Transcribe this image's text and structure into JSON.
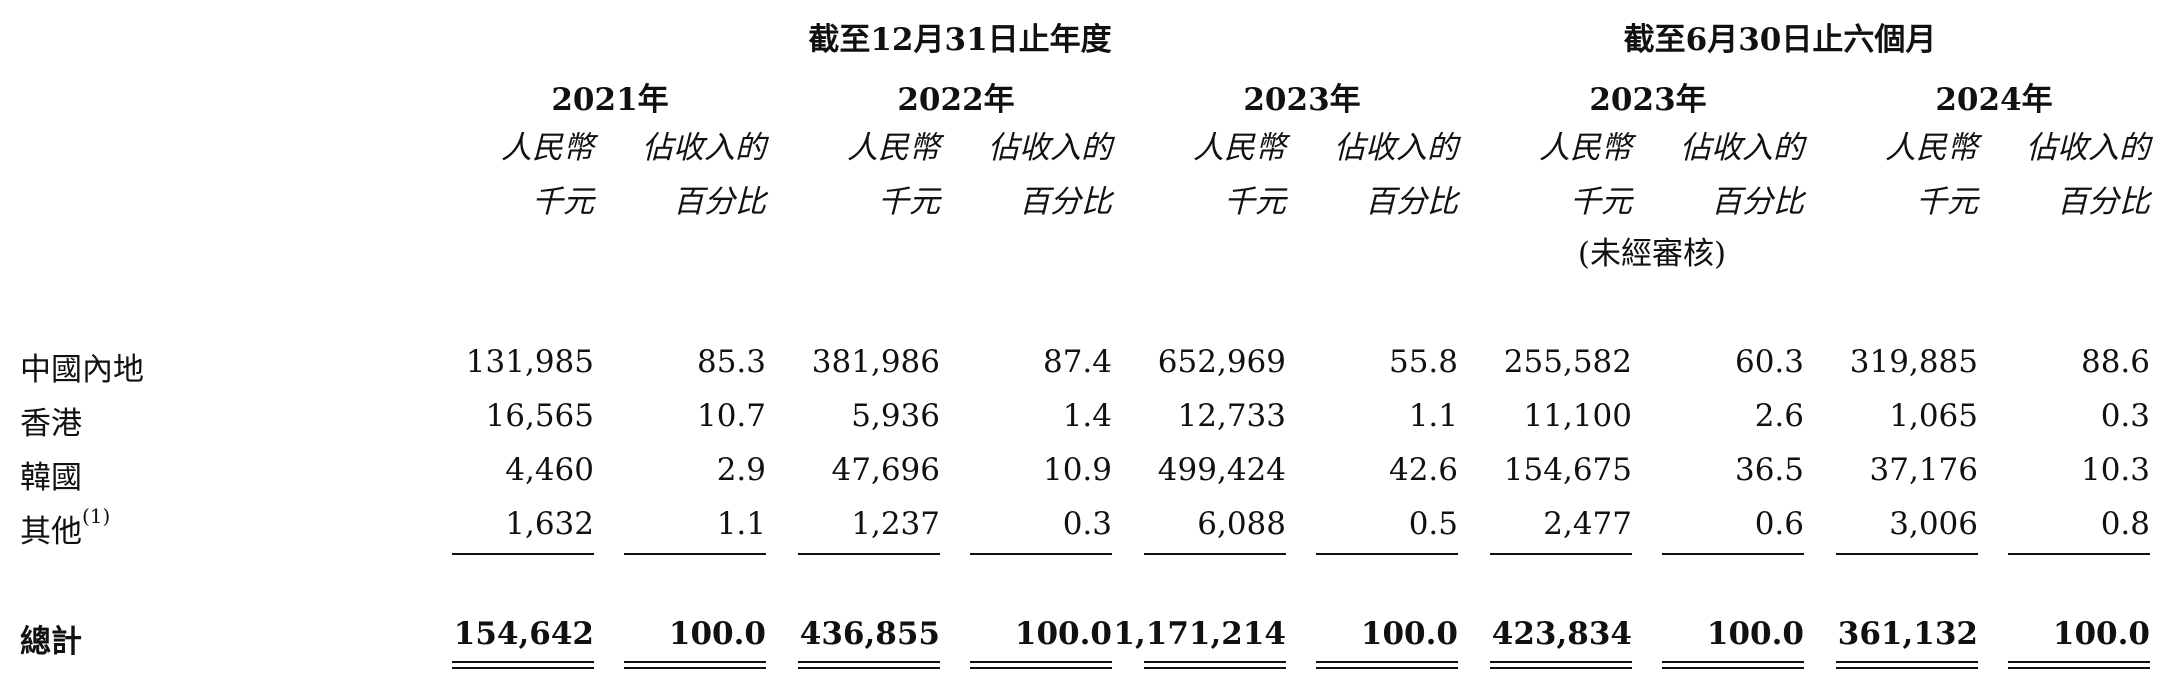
{
  "header": {
    "periods": [
      {
        "label": "截至12月31日止年度"
      },
      {
        "label": "截至6月30日止六個月"
      }
    ],
    "years": [
      "2021年",
      "2022年",
      "2023年",
      "2023年",
      "2024年"
    ],
    "amount_unit": {
      "line1": "人民幣",
      "line2": "千元"
    },
    "percent_unit": {
      "line1": "佔收入的",
      "line2": "百分比"
    },
    "unaudited_note": "(未經審核)"
  },
  "rows": [
    {
      "label": "中國內地",
      "values": [
        "131,985",
        "85.3",
        "381,986",
        "87.4",
        "652,969",
        "55.8",
        "255,582",
        "60.3",
        "319,885",
        "88.6"
      ]
    },
    {
      "label": "香港",
      "values": [
        "16,565",
        "10.7",
        "5,936",
        "1.4",
        "12,733",
        "1.1",
        "11,100",
        "2.6",
        "1,065",
        "0.3"
      ]
    },
    {
      "label": "韓國",
      "values": [
        "4,460",
        "2.9",
        "47,696",
        "10.9",
        "499,424",
        "42.6",
        "154,675",
        "36.5",
        "37,176",
        "10.3"
      ]
    },
    {
      "label": "其他",
      "footnote": "(1)",
      "values": [
        "1,632",
        "1.1",
        "1,237",
        "0.3",
        "6,088",
        "0.5",
        "2,477",
        "0.6",
        "3,006",
        "0.8"
      ]
    }
  ],
  "total": {
    "label": "總計",
    "values": [
      "154,642",
      "100.0",
      "436,855",
      "100.0",
      "1,171,214",
      "100.0",
      "423,834",
      "100.0",
      "361,132",
      "100.0"
    ]
  }
}
